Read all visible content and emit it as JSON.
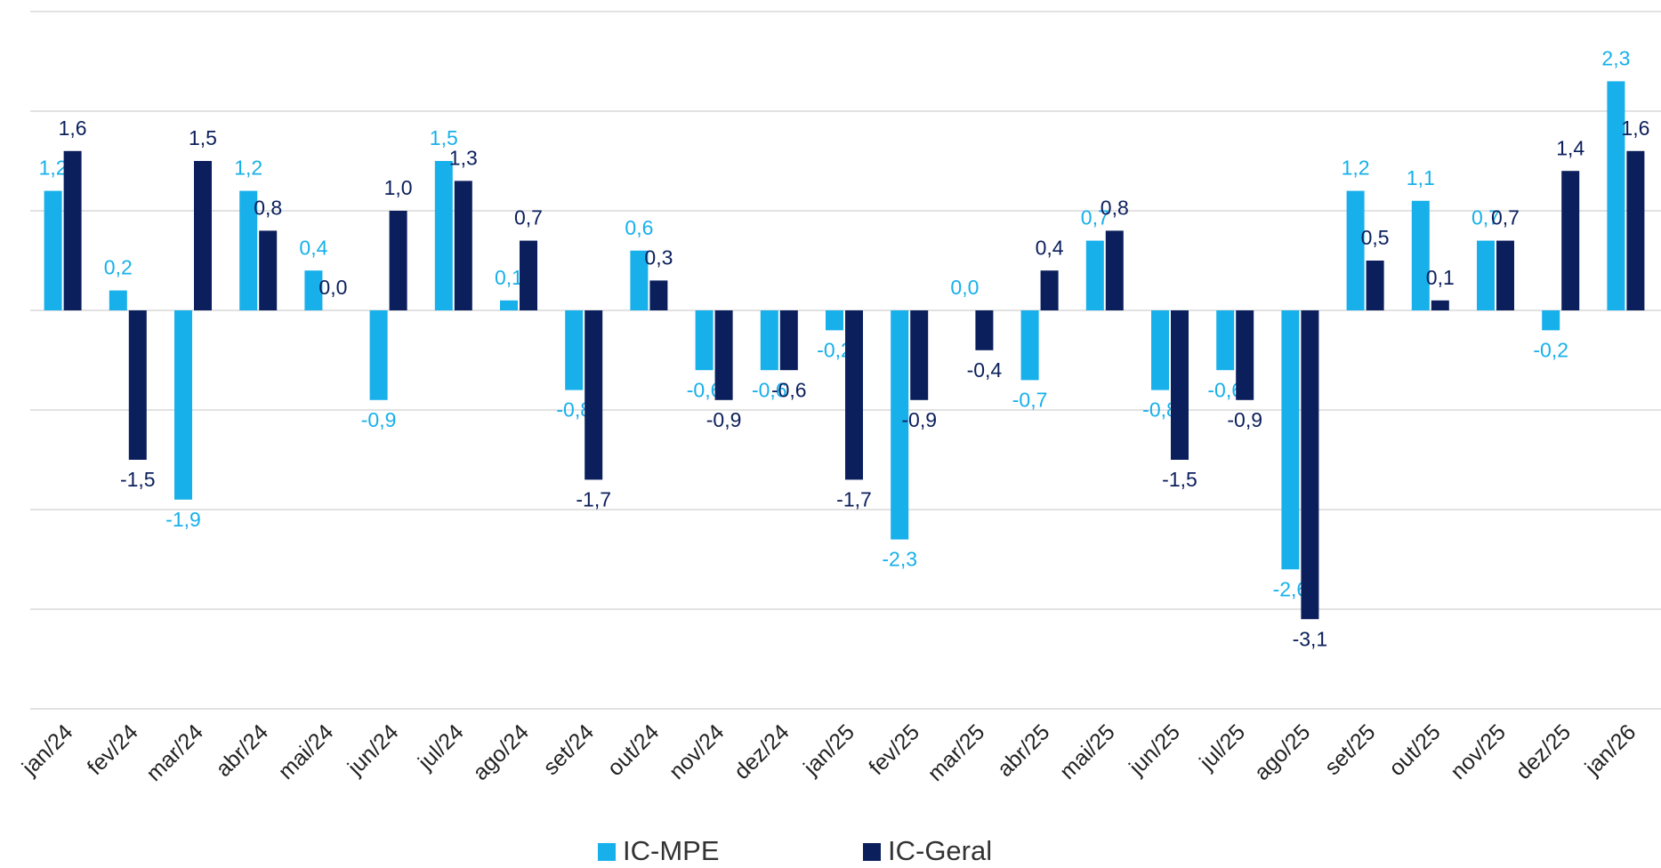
{
  "chart_data": {
    "type": "bar",
    "categories": [
      "jan/24",
      "fev/24",
      "mar/24",
      "abr/24",
      "mai/24",
      "jun/24",
      "jul/24",
      "ago/24",
      "set/24",
      "out/24",
      "nov/24",
      "dez/24",
      "jan/25",
      "fev/25",
      "mar/25",
      "abr/25",
      "mai/25",
      "jun/25",
      "jul/25",
      "ago/25",
      "set/25",
      "out/25",
      "nov/25",
      "dez/25",
      "jan/26"
    ],
    "series": [
      {
        "name": "IC-MPE",
        "color": "#17b0ea",
        "values": [
          1.2,
          0.2,
          -1.9,
          1.2,
          0.4,
          -0.9,
          1.5,
          0.1,
          -0.8,
          0.6,
          -0.6,
          -0.6,
          -0.2,
          -2.3,
          0.0,
          -0.7,
          0.7,
          -0.8,
          -0.6,
          -2.6,
          1.2,
          1.1,
          0.7,
          -0.2,
          2.3
        ],
        "value_labels": [
          "1,2",
          "0,2",
          "-1,9",
          "1,2",
          "0,4",
          "-0,9",
          "1,5",
          "0,1",
          "-0,8",
          "0,6",
          "-0,6",
          "-0,6",
          "-0,2",
          "-2,3",
          "0,0",
          "-0,7",
          "0,7",
          "-0,8",
          "-0,6",
          "-2,6",
          "1,2",
          "1,1",
          "0,7",
          "-0,2",
          "2,3"
        ]
      },
      {
        "name": "IC-Geral",
        "color": "#0b1f5c",
        "values": [
          1.6,
          -1.5,
          1.5,
          0.8,
          0.0,
          1.0,
          1.3,
          0.7,
          -1.7,
          0.3,
          -0.9,
          -0.6,
          -1.7,
          -0.9,
          -0.4,
          0.4,
          0.8,
          -1.5,
          -0.9,
          -3.1,
          0.5,
          0.1,
          0.7,
          1.4,
          1.6
        ],
        "value_labels": [
          "1,6",
          "-1,5",
          "1,5",
          "0,8",
          "0,0",
          "1,0",
          "1,3",
          "0,7",
          "-1,7",
          "0,3",
          "-0,9",
          "-0,6",
          "-1,7",
          "-0,9",
          "-0,4",
          "0,4",
          "0,8",
          "-1,5",
          "-0,9",
          "-3,1",
          "0,5",
          "0,1",
          "0,7",
          "1,4",
          "1,6"
        ]
      }
    ],
    "ylim": [
      -4,
      3
    ],
    "yticks": [
      -4,
      -3,
      -2,
      -1,
      0,
      1,
      2,
      3
    ],
    "grid": true
  }
}
